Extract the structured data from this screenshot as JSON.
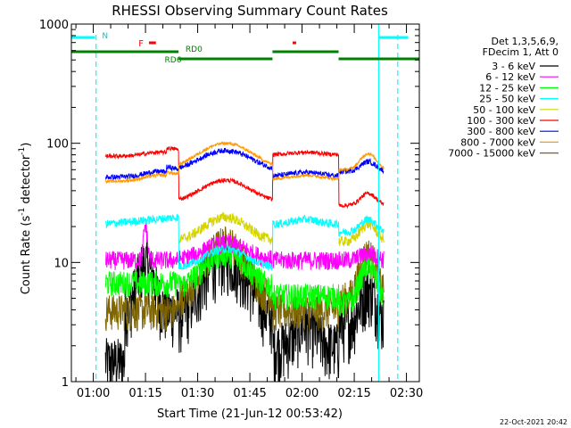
{
  "chart_data": {
    "type": "line",
    "title": "RHESSI Observing Summary Count Rates",
    "xlabel": "Start Time (21-Jun-12 00:53:42)",
    "ylabel_main": "Count Rate (s",
    "ylabel_sup1": "-1",
    "ylabel_mid": " detector",
    "ylabel_sup2": "-1",
    "ylabel_end": ")",
    "yscale": "log",
    "ylim": [
      1,
      1000
    ],
    "xlim_minutes": [
      53.7,
      153.7
    ],
    "yticks": [
      {
        "value": 1,
        "label": "1"
      },
      {
        "value": 10,
        "label": "10"
      },
      {
        "value": 100,
        "label": "100"
      },
      {
        "value": 1000,
        "label": "1000"
      }
    ],
    "xticks": [
      {
        "minute": 60,
        "label": "01:00"
      },
      {
        "minute": 75,
        "label": "01:15"
      },
      {
        "minute": 90,
        "label": "01:30"
      },
      {
        "minute": 105,
        "label": "01:45"
      },
      {
        "minute": 120,
        "label": "02:00"
      },
      {
        "minute": 135,
        "label": "02:15"
      },
      {
        "minute": 150,
        "label": "02:30"
      }
    ],
    "legend_header": [
      "Det 1,3,5,6,9,",
      "FDecim 1, Att 0"
    ],
    "series": [
      {
        "name": "3 - 6 keV",
        "color": "#000000"
      },
      {
        "name": "6 - 12 keV",
        "color": "#ff00ff"
      },
      {
        "name": "12 - 25 keV",
        "color": "#00ff00"
      },
      {
        "name": "25 - 50 keV",
        "color": "#00ffff"
      },
      {
        "name": "50 - 100 keV",
        "color": "#d4d400"
      },
      {
        "name": "100 - 300 keV",
        "color": "#ff0000"
      },
      {
        "name": "300 - 800 keV",
        "color": "#0000ff"
      },
      {
        "name": "800 - 7000 keV",
        "color": "#ff9900"
      },
      {
        "name": "7000 - 15000 keV",
        "color": "#806600"
      }
    ],
    "flags": {
      "night_label": "N",
      "flare_label": "F",
      "saa_label_1": "RD0",
      "saa_label_2": "RD6"
    },
    "vertical_lines_minutes": [
      60.8,
      142,
      147.5
    ],
    "footer_date": "22-Oct-2021 20:42"
  }
}
